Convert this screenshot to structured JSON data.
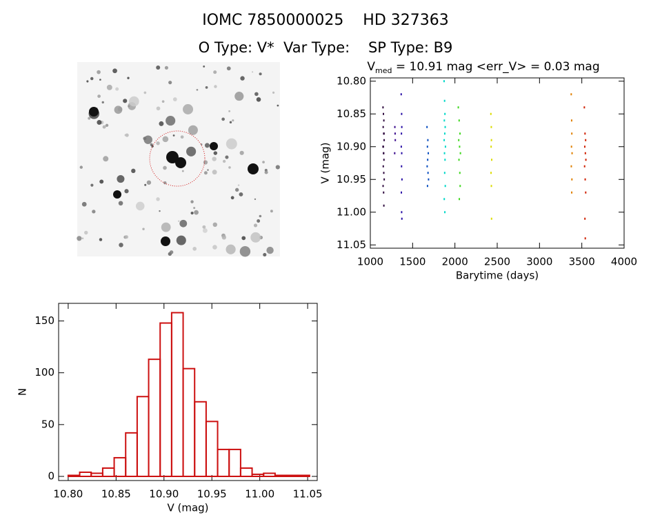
{
  "header": {
    "title": "IOMC 7850000025    HD 327363",
    "subtitle": "O Type: V*  Var Type:    SP Type: B9"
  },
  "chart_data": [
    {
      "type": "scatter",
      "title": {
        "symbol": "V",
        "subscript": "med",
        "text": " = 10.91 mag <err_V> = 0.03 mag"
      },
      "x_label": "Barytime (days)",
      "y_label": "V (mag)",
      "xlim": [
        1000,
        4000
      ],
      "xticks": [
        1000,
        1500,
        2000,
        2500,
        3000,
        3500,
        4000
      ],
      "ylim": [
        11.055,
        10.795
      ],
      "yticks": [
        {
          "value": 10.8,
          "label": "10.80"
        },
        {
          "value": 10.85,
          "label": "10.85"
        },
        {
          "value": 10.9,
          "label": "10.90"
        },
        {
          "value": 10.95,
          "label": "10.95"
        },
        {
          "value": 11.0,
          "label": "11.00"
        },
        {
          "value": 11.05,
          "label": "11.05"
        }
      ],
      "series": [
        {
          "color": "#2e0a3e",
          "x": [
            1150,
            1155,
            1160,
            1152,
            1158,
            1163,
            1150,
            1156,
            1161,
            1153,
            1159,
            1164,
            1151,
            1157,
            1160,
            1162,
            1154,
            1158
          ],
          "values": [
            10.84,
            10.85,
            10.86,
            10.87,
            10.88,
            10.89,
            10.9,
            10.91,
            10.92,
            10.93,
            10.94,
            10.95,
            10.96,
            10.97,
            10.99,
            10.88,
            10.9,
            10.91
          ]
        },
        {
          "color": "#3a0a8c",
          "x": [
            1290,
            1295,
            1288,
            1293
          ],
          "values": [
            10.87,
            10.89,
            10.91,
            10.88
          ]
        },
        {
          "color": "#2a10a6",
          "x": [
            1365,
            1370,
            1372,
            1368,
            1366,
            1371,
            1369,
            1374,
            1367,
            1370,
            1373
          ],
          "values": [
            10.82,
            10.85,
            10.87,
            10.88,
            10.9,
            10.91,
            10.93,
            10.95,
            10.97,
            11.0,
            11.01
          ]
        },
        {
          "color": "#0a4ec0",
          "x": [
            1670,
            1680,
            1675,
            1685,
            1678,
            1672,
            1682,
            1688,
            1676
          ],
          "values": [
            10.87,
            10.89,
            10.9,
            10.91,
            10.92,
            10.93,
            10.94,
            10.95,
            10.96
          ]
        },
        {
          "color": "#00d8c8",
          "x": [
            1872,
            1878,
            1882,
            1875,
            1885,
            1880,
            1873,
            1888,
            1877,
            1883,
            1879,
            1886,
            1874,
            1881
          ],
          "values": [
            10.8,
            10.83,
            10.85,
            10.86,
            10.87,
            10.88,
            10.89,
            10.9,
            10.91,
            10.92,
            10.94,
            10.96,
            10.98,
            11.0
          ]
        },
        {
          "color": "#40d820",
          "x": [
            2040,
            2050,
            2060,
            2045,
            2055,
            2065,
            2048,
            2058,
            2062,
            2052
          ],
          "values": [
            10.84,
            10.86,
            10.88,
            10.89,
            10.9,
            10.91,
            10.92,
            10.94,
            10.96,
            10.98
          ]
        },
        {
          "color": "#dcdc00",
          "x": [
            2425,
            2430,
            2432,
            2428,
            2435,
            2427,
            2431,
            2433
          ],
          "values": [
            10.85,
            10.87,
            10.89,
            10.9,
            10.92,
            10.94,
            10.96,
            11.01
          ]
        },
        {
          "color": "#e08000",
          "x": [
            3375,
            3380,
            3382,
            3378,
            3385,
            3376,
            3383,
            3381
          ],
          "values": [
            10.82,
            10.86,
            10.88,
            10.9,
            10.91,
            10.93,
            10.95,
            10.97
          ]
        },
        {
          "color": "#d02000",
          "x": [
            3530,
            3538,
            3545,
            3535,
            3542,
            3548,
            3533,
            3540,
            3546,
            3537,
            3541
          ],
          "values": [
            10.84,
            10.88,
            10.89,
            10.9,
            10.91,
            10.92,
            10.93,
            10.95,
            10.97,
            11.01,
            11.04
          ]
        }
      ]
    },
    {
      "type": "histogram",
      "color": "#cc1010",
      "x_label": "V (mag)",
      "y_label": "N",
      "bins": [
        10.8,
        10.812,
        10.824,
        10.836,
        10.848,
        10.86,
        10.872,
        10.884,
        10.896,
        10.908,
        10.92,
        10.932,
        10.944,
        10.956,
        10.968,
        10.98,
        10.992,
        11.004,
        11.016,
        11.028,
        11.04,
        11.052
      ],
      "values": [
        1,
        4,
        3,
        8,
        18,
        42,
        77,
        113,
        148,
        158,
        104,
        72,
        53,
        26,
        26,
        8,
        2,
        3,
        1,
        1,
        1
      ],
      "xlim": [
        10.79,
        11.06
      ],
      "xticks": [
        {
          "value": 10.8,
          "label": "10.80"
        },
        {
          "value": 10.85,
          "label": "10.85"
        },
        {
          "value": 10.9,
          "label": "10.90"
        },
        {
          "value": 10.95,
          "label": "10.95"
        },
        {
          "value": 11.0,
          "label": "11.00"
        },
        {
          "value": 11.05,
          "label": "11.05"
        }
      ],
      "ylim": [
        -4,
        167
      ],
      "yticks": [
        0,
        50,
        100,
        150
      ]
    }
  ]
}
